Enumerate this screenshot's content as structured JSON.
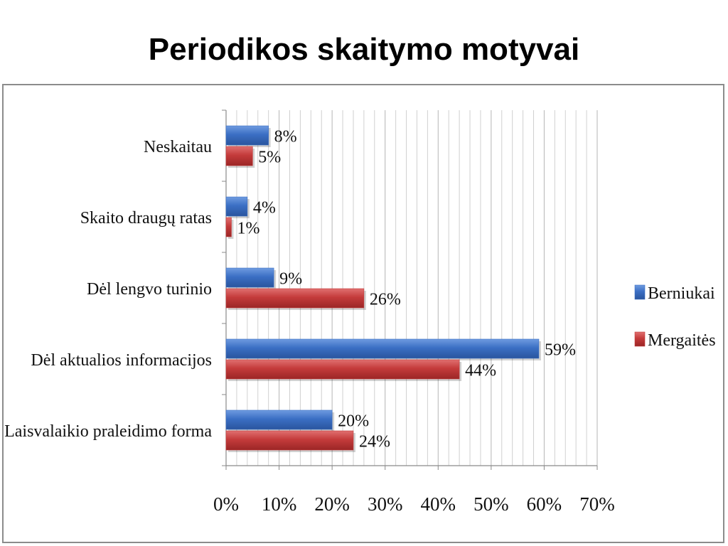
{
  "slide": {
    "title": "Periodikos skaitymo motyvai"
  },
  "chart_data": {
    "type": "bar",
    "orientation": "horizontal",
    "categories": [
      "Neskaitau",
      "Skaito draugų ratas",
      "Dėl lengvo turinio",
      "Dėl aktualios informacijos",
      "Laisvalaikio praleidimo forma"
    ],
    "series": [
      {
        "name": "Berniukai",
        "color": "#3b6fc4",
        "values": [
          8,
          4,
          9,
          59,
          20
        ],
        "labels": [
          "8%",
          "4%",
          "9%",
          "59%",
          "20%"
        ]
      },
      {
        "name": "Mergaitės",
        "color": "#c43b3b",
        "values": [
          5,
          1,
          26,
          44,
          24
        ],
        "labels": [
          "5%",
          "1%",
          "26%",
          "44%",
          "24%"
        ]
      }
    ],
    "xlim": [
      0,
      70
    ],
    "xticks": [
      0,
      10,
      20,
      30,
      40,
      50,
      60,
      70
    ],
    "xtick_labels": [
      "0%",
      "10%",
      "20%",
      "30%",
      "40%",
      "50%",
      "60%",
      "70%"
    ],
    "grid": true,
    "legend_position": "right",
    "title": "",
    "xlabel": "",
    "ylabel": ""
  }
}
